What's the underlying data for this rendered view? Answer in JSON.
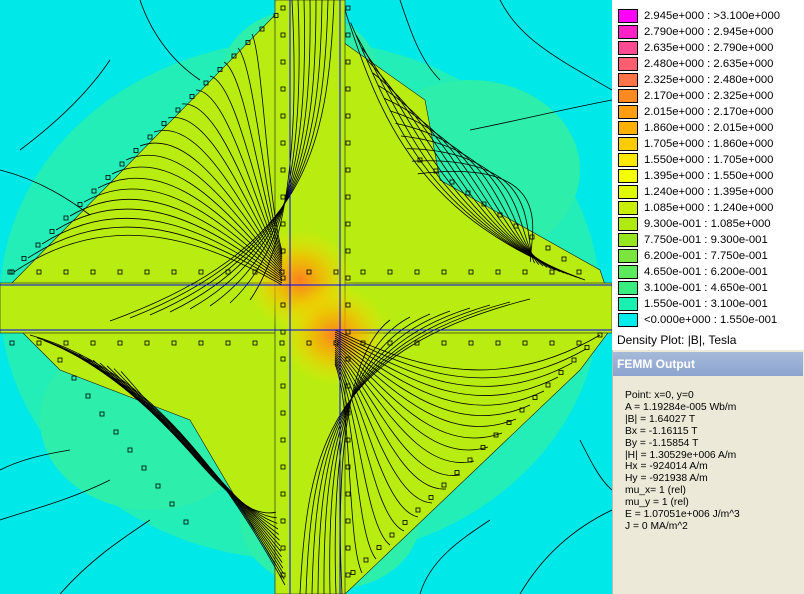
{
  "legend": {
    "items": [
      {
        "range": "2.945e+000 : >3.100e+000",
        "color": "#ff00ff"
      },
      {
        "range": "2.790e+000 : 2.945e+000",
        "color": "#ff21c8"
      },
      {
        "range": "2.635e+000 : 2.790e+000",
        "color": "#ff4b8f"
      },
      {
        "range": "2.480e+000 : 2.635e+000",
        "color": "#ff5f6e"
      },
      {
        "range": "2.325e+000 : 2.480e+000",
        "color": "#ff7348"
      },
      {
        "range": "2.170e+000 : 2.325e+000",
        "color": "#ff8a22"
      },
      {
        "range": "2.015e+000 : 2.170e+000",
        "color": "#ff9d10"
      },
      {
        "range": "1.860e+000 : 2.015e+000",
        "color": "#ffb000"
      },
      {
        "range": "1.705e+000 : 1.860e+000",
        "color": "#ffcc00"
      },
      {
        "range": "1.550e+000 : 1.705e+000",
        "color": "#ffe800"
      },
      {
        "range": "1.395e+000 : 1.550e+000",
        "color": "#f4ff00"
      },
      {
        "range": "1.240e+000 : 1.395e+000",
        "color": "#e0f800"
      },
      {
        "range": "1.085e+000 : 1.240e+000",
        "color": "#c8f000"
      },
      {
        "range": "9.300e-001 : 1.085e+000",
        "color": "#b0ea10"
      },
      {
        "range": "7.750e-001 : 9.300e-001",
        "color": "#98e620"
      },
      {
        "range": "6.200e-001 : 7.750e-001",
        "color": "#78e63c"
      },
      {
        "range": "4.650e-001 : 6.200e-001",
        "color": "#5cea5c"
      },
      {
        "range": "3.100e-001 : 4.650e-001",
        "color": "#38ee80"
      },
      {
        "range": "1.550e-001 : 3.100e-001",
        "color": "#1af0b0"
      },
      {
        "range": "<0.000e+000 : 1.550e-001",
        "color": "#00ecec"
      }
    ],
    "caption": "Density Plot: |B|, Tesla"
  },
  "output": {
    "title": "FEMM Output",
    "lines": [
      "Point: x=0, y=0",
      "A  = 1.19284e-005 Wb/m",
      "|B| = 1.64027 T",
      "Bx  = -1.16115 T",
      "By  = -1.15854 T",
      "|H| = 1.30529e+006 A/m",
      "Hx  = -924014 A/m",
      "Hy  = -921938 A/m",
      "mu_x= 1 (rel)",
      "mu_y = 1 (rel)",
      "E  = 1.07051e+006 J/m^3",
      "J  = 0 MA/m^2"
    ]
  },
  "colors": {
    "background": "#00e8e8",
    "halo": "#3cf0a0",
    "region_fill": "#b8ec10",
    "hotspot": "#ff8a22",
    "flux_line": "#000000",
    "axis_line": "#0000ff"
  }
}
